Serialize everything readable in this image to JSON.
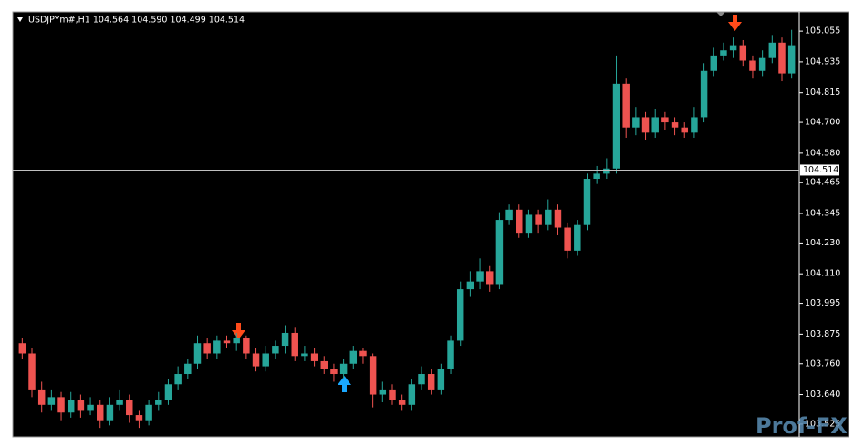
{
  "chart_data": {
    "type": "candlestick",
    "title": "USDJPYm#,H1  104.564 104.590 104.499 104.514",
    "watermark": "Prof-FX",
    "up_color": "#26a69a",
    "down_color": "#ef5350",
    "open": [
      103.84,
      103.8,
      103.66,
      103.6,
      103.63,
      103.57,
      103.62,
      103.58,
      103.6,
      103.54,
      103.6,
      103.62,
      103.56,
      103.54,
      103.6,
      103.62,
      103.68,
      103.72,
      103.76,
      103.84,
      103.8,
      103.85,
      103.84,
      103.86,
      103.8,
      103.75,
      103.8,
      103.83,
      103.88,
      103.79,
      103.8,
      103.77,
      103.74,
      103.72,
      103.76,
      103.81,
      103.79,
      103.64,
      103.66,
      103.62,
      103.6,
      103.68,
      103.72,
      103.66,
      103.74,
      103.85,
      104.05,
      104.08,
      104.12,
      104.07,
      104.32,
      104.36,
      104.27,
      104.34,
      104.3,
      104.36,
      104.29,
      104.2,
      104.3,
      104.48,
      104.5,
      104.52,
      104.85,
      104.68,
      104.72,
      104.66,
      104.72,
      104.7,
      104.68,
      104.66,
      104.72,
      104.9,
      104.96,
      104.98,
      105.0,
      104.94,
      104.9,
      104.95,
      105.01,
      104.89
    ],
    "high": [
      103.86,
      103.82,
      103.69,
      103.66,
      103.65,
      103.65,
      103.64,
      103.63,
      103.62,
      103.63,
      103.66,
      103.64,
      103.58,
      103.62,
      103.65,
      103.7,
      103.75,
      103.78,
      103.87,
      103.86,
      103.87,
      103.87,
      103.88,
      103.87,
      103.82,
      103.83,
      103.85,
      103.91,
      103.9,
      103.83,
      103.82,
      103.79,
      103.76,
      103.78,
      103.83,
      103.82,
      103.8,
      103.69,
      103.68,
      103.64,
      103.7,
      103.75,
      103.74,
      103.76,
      103.87,
      104.08,
      104.12,
      104.17,
      104.14,
      104.35,
      104.38,
      104.38,
      104.36,
      104.36,
      104.4,
      104.38,
      104.31,
      104.32,
      104.5,
      104.53,
      104.56,
      104.96,
      104.87,
      104.76,
      104.74,
      104.75,
      104.74,
      104.72,
      104.7,
      104.76,
      104.93,
      104.99,
      105.01,
      105.03,
      105.02,
      104.96,
      104.98,
      105.04,
      105.03,
      105.06
    ],
    "low": [
      103.78,
      103.63,
      103.57,
      103.58,
      103.54,
      103.55,
      103.55,
      103.56,
      103.51,
      103.52,
      103.58,
      103.53,
      103.51,
      103.52,
      103.58,
      103.6,
      103.66,
      103.7,
      103.74,
      103.78,
      103.78,
      103.82,
      103.81,
      103.78,
      103.73,
      103.73,
      103.78,
      103.8,
      103.77,
      103.77,
      103.75,
      103.72,
      103.69,
      103.7,
      103.74,
      103.76,
      103.59,
      103.61,
      103.6,
      103.58,
      103.58,
      103.66,
      103.64,
      103.64,
      103.72,
      103.83,
      104.02,
      104.05,
      104.04,
      104.05,
      104.3,
      104.25,
      104.25,
      104.27,
      104.28,
      104.26,
      104.17,
      104.18,
      104.28,
      104.46,
      104.48,
      104.5,
      104.64,
      104.65,
      104.63,
      104.64,
      104.67,
      104.65,
      104.64,
      104.64,
      104.7,
      104.88,
      104.94,
      104.95,
      104.92,
      104.87,
      104.88,
      104.93,
      104.86,
      104.87
    ],
    "close": [
      103.8,
      103.66,
      103.6,
      103.63,
      103.57,
      103.62,
      103.58,
      103.6,
      103.54,
      103.6,
      103.62,
      103.56,
      103.54,
      103.6,
      103.62,
      103.68,
      103.72,
      103.76,
      103.84,
      103.8,
      103.85,
      103.84,
      103.86,
      103.8,
      103.75,
      103.8,
      103.83,
      103.88,
      103.79,
      103.8,
      103.77,
      103.74,
      103.72,
      103.76,
      103.81,
      103.79,
      103.64,
      103.66,
      103.62,
      103.6,
      103.68,
      103.72,
      103.66,
      103.74,
      103.85,
      104.05,
      104.08,
      104.12,
      104.07,
      104.32,
      104.36,
      104.27,
      104.34,
      104.3,
      104.36,
      104.29,
      104.2,
      104.3,
      104.48,
      104.5,
      104.52,
      104.85,
      104.68,
      104.72,
      104.66,
      104.72,
      104.7,
      104.68,
      104.66,
      104.72,
      104.9,
      104.96,
      104.98,
      105.0,
      104.94,
      104.9,
      104.95,
      105.01,
      104.89,
      105.0
    ],
    "current_price": 104.514,
    "ylim": [
      103.475,
      105.13
    ],
    "yticks": [
      105.055,
      104.935,
      104.815,
      {
        "value": 104.7,
        "label": "104.700"
      },
      {
        "value": 104.58,
        "label": "104.580"
      },
      104.465,
      104.345,
      {
        "value": 104.23,
        "label": "104.230"
      },
      {
        "value": 104.11,
        "label": "104.110"
      },
      103.995,
      103.875,
      {
        "value": 103.76,
        "label": "103.760"
      },
      {
        "value": 103.64,
        "label": "103.640"
      },
      103.525
    ]
  }
}
